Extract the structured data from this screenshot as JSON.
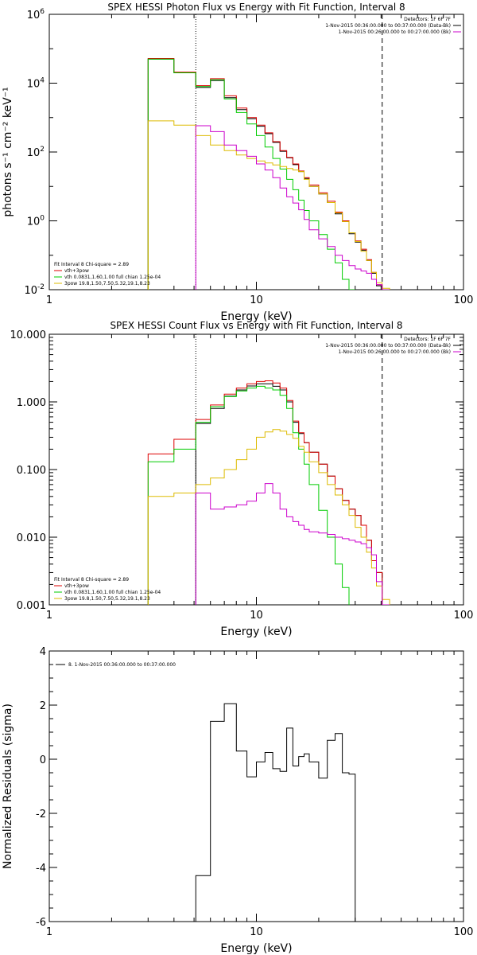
{
  "chart_data": [
    {
      "type": "line",
      "title": "SPEX HESSI Photon Flux vs Energy with Fit Function, Interval 8",
      "xlabel": "Energy (keV)",
      "ylabel": "photons s⁻¹ cm⁻² keV⁻¹",
      "xscale": "log",
      "yscale": "log",
      "xlim": [
        1,
        100
      ],
      "ylim": [
        0.01,
        1000000
      ],
      "x_ticks": [
        {
          "v": 1,
          "label": "1"
        },
        {
          "v": 10,
          "label": "10"
        },
        {
          "v": 100,
          "label": "100"
        }
      ],
      "y_ticks": [
        {
          "v": 0.01,
          "base": "10",
          "exp": "-2"
        },
        {
          "v": 1,
          "base": "10",
          "exp": "0"
        },
        {
          "v": 100,
          "base": "10",
          "exp": "2"
        },
        {
          "v": 10000,
          "base": "10",
          "exp": "4"
        },
        {
          "v": 1000000,
          "base": "10",
          "exp": "6"
        }
      ],
      "header_lines": [
        "Detectors: 1F 6F 7F",
        "1-Nov-2015 00:36:00.000 to 00:37:00.000 (Data-Bk)",
        "1-Nov-2015 00:26:00.000 to 00:27:00.000 (Bk)"
      ],
      "header_colors": [
        "",
        "#000000",
        "#cc00cc"
      ],
      "legend": [
        {
          "text": "Fit Interval 8   Chi-square = 2.89",
          "color": "#000000"
        },
        {
          "text": "vth+3pow",
          "color": "#dd0000"
        },
        {
          "text": "vth 0.0831,1.60,1.00  full chian 1.25e-04",
          "color": "#00cc00"
        },
        {
          "text": "3pow 19.8,1.50,7.50,5.32,19.1,8.23",
          "color": "#ddbb00"
        }
      ],
      "vlines": [
        {
          "x": 5.1,
          "style": "dotted"
        },
        {
          "x": 40.5,
          "style": "dashed"
        }
      ],
      "bin_edges": [
        3,
        4,
        5.1,
        6,
        7,
        8,
        9,
        10,
        11,
        12,
        13,
        14,
        15,
        16,
        17,
        18,
        20,
        22,
        24,
        26,
        28,
        30,
        32,
        34,
        36,
        38,
        40.5,
        44,
        48
      ],
      "series": [
        {
          "name": "Data-Bk",
          "color": "#000000",
          "values": [
            50000,
            20000,
            7500,
            12000,
            3800,
            1700,
            930,
            560,
            340,
            190,
            105,
            68,
            43,
            27,
            17,
            10,
            6,
            3.4,
            1.6,
            0.95,
            0.42,
            0.24,
            0.14,
            0.07,
            0.03,
            0.013,
            null,
            null
          ]
        },
        {
          "name": "vth+3pow",
          "color": "#dd0000",
          "values": [
            52000,
            21000,
            8500,
            13500,
            4300,
            1900,
            1000,
            600,
            360,
            200,
            110,
            70,
            45,
            28,
            18,
            11,
            6.5,
            3.7,
            1.8,
            1.0,
            0.45,
            0.26,
            0.15,
            0.075,
            0.032,
            0.014,
            null,
            null
          ]
        },
        {
          "name": "vth",
          "color": "#00cc00",
          "values": [
            50000,
            20000,
            8000,
            12500,
            3500,
            1400,
            650,
            300,
            140,
            65,
            32,
            16,
            8,
            4,
            2,
            1,
            0.4,
            0.15,
            0.06,
            0.02,
            0.008,
            null,
            null,
            null,
            null,
            null,
            null,
            null
          ]
        },
        {
          "name": "3pow",
          "color": "#ddbb00",
          "values": [
            800,
            600,
            300,
            160,
            110,
            82,
            65,
            55,
            48,
            42,
            38,
            33,
            30,
            27,
            16,
            10,
            6,
            3.4,
            1.7,
            0.95,
            0.45,
            0.25,
            0.13,
            0.07,
            0.032,
            0.016,
            0.011,
            null
          ]
        },
        {
          "name": "Bk",
          "color": "#cc00cc",
          "values": [
            null,
            null,
            580,
            390,
            160,
            110,
            75,
            45,
            30,
            18,
            9,
            5,
            3.3,
            2.1,
            1.1,
            0.55,
            0.3,
            0.18,
            0.1,
            0.07,
            0.05,
            0.04,
            0.035,
            0.03,
            0.02,
            0.014,
            0.01,
            null
          ]
        }
      ]
    },
    {
      "type": "line",
      "title": "SPEX HESSI Count Flux vs Energy with Fit Function, Interval 8",
      "xlabel": "Energy (keV)",
      "ylabel": "",
      "xscale": "log",
      "yscale": "log",
      "xlim": [
        1,
        100
      ],
      "ylim": [
        0.001,
        10
      ],
      "x_ticks": [
        {
          "v": 1,
          "label": "1"
        },
        {
          "v": 10,
          "label": "10"
        },
        {
          "v": 100,
          "label": "100"
        }
      ],
      "y_ticks": [
        {
          "v": 0.001,
          "label": "0.001"
        },
        {
          "v": 0.01,
          "label": "0.010"
        },
        {
          "v": 0.1,
          "label": "0.100"
        },
        {
          "v": 1,
          "label": "1.000"
        },
        {
          "v": 10,
          "label": "10.000"
        }
      ],
      "header_lines": [
        "Detectors: 1F 6F 7F",
        "1-Nov-2015 00:36:00.000 to 00:37:00.000 (Data-Bk)",
        "1-Nov-2015 00:26:00.000 to 00:27:00.000 (Bk)"
      ],
      "header_colors": [
        "",
        "#000000",
        "#cc00cc"
      ],
      "legend": [
        {
          "text": "Fit Interval 8   Chi-square = 2.89",
          "color": "#000000"
        },
        {
          "text": "vth+3pow",
          "color": "#dd0000"
        },
        {
          "text": "vth 0.0831,1.60,1.00  full chian 1.25e-04",
          "color": "#00cc00"
        },
        {
          "text": "3pow 19.8,1.50,7.50,5.32,19.1,8.23",
          "color": "#ddbb00"
        }
      ],
      "vlines": [
        {
          "x": 5.1,
          "style": "dotted"
        },
        {
          "x": 40.5,
          "style": "dashed"
        }
      ],
      "bin_edges": [
        3,
        4,
        5.1,
        6,
        7,
        8,
        9,
        10,
        11,
        12,
        13,
        14,
        15,
        16,
        17,
        18,
        20,
        22,
        24,
        26,
        28,
        30,
        32,
        34,
        36,
        38,
        40.5,
        44,
        48
      ],
      "series": [
        {
          "name": "Data-Bk",
          "color": "#000000",
          "values": [
            null,
            null,
            0.48,
            0.8,
            1.22,
            1.5,
            1.72,
            1.85,
            1.85,
            1.7,
            1.5,
            1.0,
            0.5,
            0.34,
            0.25,
            0.18,
            0.12,
            0.08,
            0.052,
            0.035,
            0.026,
            0.021,
            0.015,
            0.009,
            0.0045,
            0.003,
            null,
            null
          ]
        },
        {
          "name": "vth+3pow",
          "color": "#dd0000",
          "values": [
            0.17,
            0.28,
            0.55,
            0.9,
            1.3,
            1.6,
            1.85,
            2.0,
            2.05,
            1.9,
            1.6,
            1.05,
            0.52,
            0.35,
            0.25,
            0.18,
            0.12,
            0.08,
            0.052,
            0.035,
            0.026,
            0.021,
            0.015,
            0.009,
            0.0045,
            0.003,
            0.001,
            null
          ]
        },
        {
          "name": "vth",
          "color": "#00cc00",
          "values": [
            0.13,
            0.2,
            0.5,
            0.85,
            1.2,
            1.45,
            1.6,
            1.7,
            1.6,
            1.5,
            1.25,
            0.8,
            0.35,
            0.2,
            0.12,
            0.06,
            0.025,
            0.01,
            0.004,
            0.0018,
            null,
            null,
            null,
            null,
            null,
            null,
            null,
            null
          ]
        },
        {
          "name": "3pow",
          "color": "#ddbb00",
          "values": [
            0.04,
            0.045,
            0.06,
            0.075,
            0.1,
            0.14,
            0.2,
            0.3,
            0.36,
            0.39,
            0.37,
            0.33,
            0.29,
            0.22,
            0.18,
            0.13,
            0.09,
            0.06,
            0.042,
            0.03,
            0.021,
            0.014,
            0.01,
            0.006,
            0.0035,
            0.0019,
            0.0012,
            null
          ]
        },
        {
          "name": "Bk",
          "color": "#cc00cc",
          "values": [
            null,
            null,
            0.045,
            0.026,
            0.028,
            0.03,
            0.034,
            0.045,
            0.062,
            0.045,
            0.026,
            0.02,
            0.017,
            0.015,
            0.013,
            0.012,
            0.0115,
            0.011,
            0.01,
            0.0095,
            0.009,
            0.0085,
            0.008,
            0.007,
            0.0055,
            0.0022,
            0.001,
            null
          ]
        }
      ]
    },
    {
      "type": "line",
      "title": "",
      "xlabel": "Energy (keV)",
      "ylabel": "Normalized Residuals (sigma)",
      "xscale": "log",
      "yscale": "linear",
      "xlim": [
        1,
        100
      ],
      "ylim": [
        -6,
        4
      ],
      "x_ticks": [
        {
          "v": 1,
          "label": "1"
        },
        {
          "v": 10,
          "label": "10"
        },
        {
          "v": 100,
          "label": "100"
        }
      ],
      "y_ticks": [
        {
          "v": -6,
          "label": "-6"
        },
        {
          "v": -4,
          "label": "-4"
        },
        {
          "v": -2,
          "label": "-2"
        },
        {
          "v": 0,
          "label": "0"
        },
        {
          "v": 2,
          "label": "2"
        },
        {
          "v": 4,
          "label": "4"
        }
      ],
      "header_lines": [],
      "legend": [
        {
          "text": "8. 1-Nov-2015 00:36:00.000 to 00:37:00.000",
          "color": "#000000"
        }
      ],
      "vlines": [],
      "bin_edges": [
        5.1,
        6,
        7,
        8,
        9,
        10,
        11,
        12,
        13,
        14,
        15,
        16,
        17,
        18,
        20,
        22,
        24,
        26,
        28,
        30,
        32,
        34,
        36,
        38,
        40.5
      ],
      "series": [
        {
          "name": "8. 1-Nov-2015 00:36:00.000 to 00:37:00.000",
          "color": "#000000",
          "values": [
            -4.3,
            1.4,
            2.05,
            0.3,
            -0.65,
            -0.1,
            0.25,
            -0.35,
            -0.45,
            1.15,
            -0.25,
            0.1,
            0.2,
            -0.1,
            -0.7,
            0.7,
            0.95,
            -0.5,
            -0.55,
            null,
            null,
            null,
            null,
            null
          ],
          "drop_to_bottom_end": true
        }
      ]
    }
  ]
}
